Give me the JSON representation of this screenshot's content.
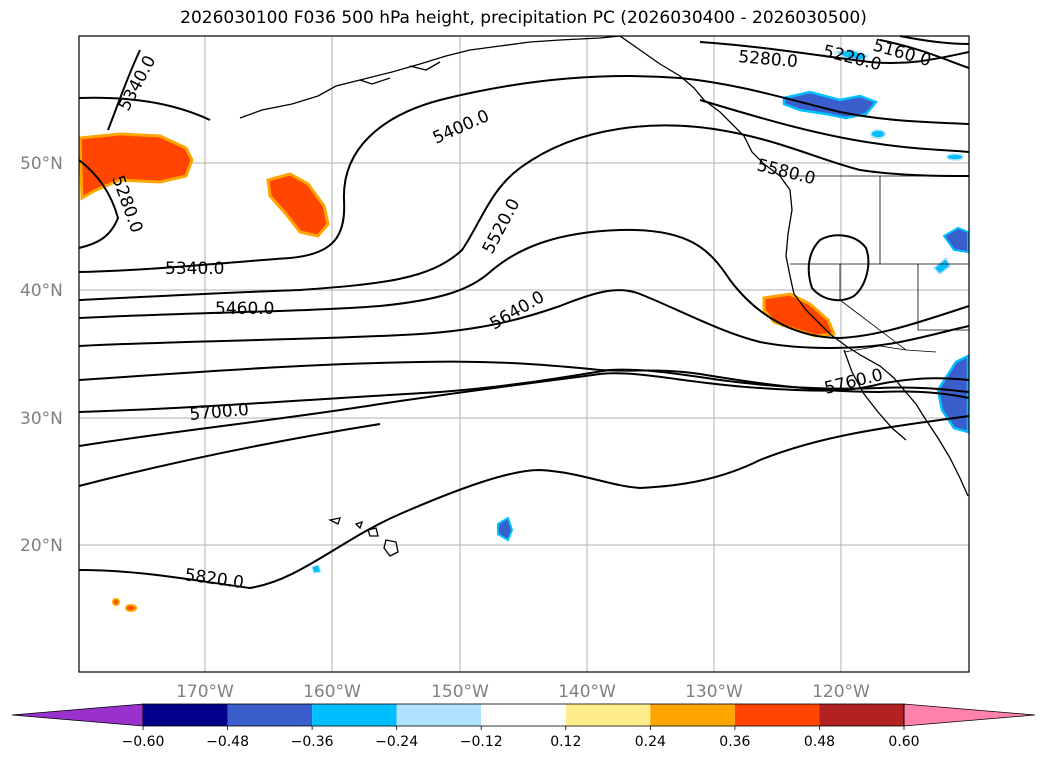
{
  "title": "2026030100 F036 500 hPa height, precipitation PC (2026030400 - 2026030500)",
  "map": {
    "lat_labels": [
      "50°N",
      "40°N",
      "30°N",
      "20°N"
    ],
    "lon_labels": [
      "170°W",
      "160°W",
      "150°W",
      "140°W",
      "130°W",
      "120°W"
    ],
    "contour_labels": [
      "5340.0",
      "5280.0",
      "5340.0",
      "5460.0",
      "5400.0",
      "5520.0",
      "5640.0",
      "5700.0",
      "5820.0",
      "5280.0",
      "5220.0",
      "5160.0",
      "5580.0",
      "5760.0"
    ]
  },
  "colorbar": {
    "ticks": [
      "−0.60",
      "−0.48",
      "−0.36",
      "−0.24",
      "−0.12",
      "0.12",
      "0.24",
      "0.36",
      "0.48",
      "0.60"
    ],
    "colors": [
      "#9932cc",
      "#00008b",
      "#3a5fcd",
      "#00bfff",
      "#b0e2ff",
      "#ffffff",
      "#ffec8b",
      "#ffa500",
      "#ff4500",
      "#b22222",
      "#ff82ab"
    ]
  },
  "colors": {
    "positive_precip": "#ff4500",
    "positive_precip_edge": "#ffa500",
    "negative_precip": "#3a5fcd",
    "negative_precip_edge": "#00bfff"
  }
}
